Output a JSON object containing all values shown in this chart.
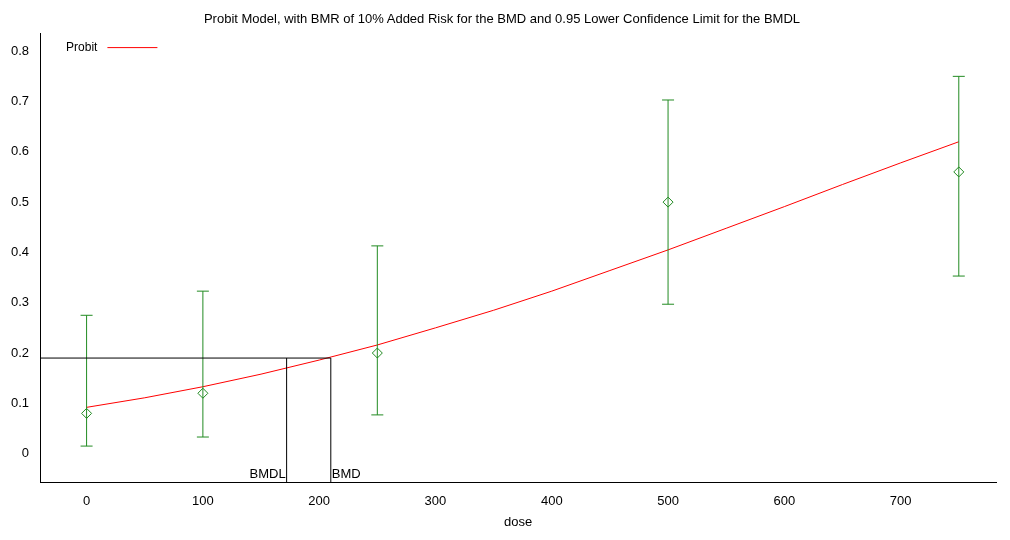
{
  "chart_data": {
    "type": "scatter",
    "title": "Probit Model, with BMR of 10% Added Risk for the BMD and 0.95 Lower Confidence Limit for the BMDL",
    "xlabel": "dose",
    "series": [
      {
        "type": "line",
        "name": "Probit",
        "color": "#ff0000",
        "marker": "none",
        "x": [
          0,
          50,
          100,
          150,
          200,
          250,
          300,
          350,
          400,
          450,
          500,
          550,
          600,
          650,
          700,
          750
        ],
        "values": [
          0.092,
          0.111,
          0.133,
          0.158,
          0.186,
          0.216,
          0.25,
          0.285,
          0.323,
          0.364,
          0.405,
          0.448,
          0.491,
          0.535,
          0.578,
          0.62
        ]
      },
      {
        "type": "scatter",
        "color": "#228b22",
        "marker": "diamond",
        "x": [
          0,
          100,
          250,
          500,
          750
        ],
        "values": [
          0.08,
          0.12,
          0.2,
          0.5,
          0.56
        ],
        "errors": [
          [
            0.015,
            0.275
          ],
          [
            0.033,
            0.323
          ],
          [
            0.077,
            0.413
          ],
          [
            0.297,
            0.703
          ],
          [
            0.353,
            0.75
          ]
        ]
      }
    ],
    "xlim": [
      -40,
      782
    ],
    "xticks": [
      0,
      100,
      200,
      300,
      400,
      500,
      600,
      700
    ],
    "ylim": [
      -0.058,
      0.835
    ],
    "yticks": [
      0,
      0.1,
      0.2,
      0.3,
      0.4,
      0.5,
      0.6,
      0.7,
      0.8
    ],
    "ref_lines": [
      {
        "axis": "y",
        "value": 0.19,
        "color": "#000000"
      },
      {
        "axis": "x",
        "value": 172,
        "label": "BMDL",
        "color": "#000000"
      },
      {
        "axis": "x",
        "value": 210,
        "label": "BMD",
        "color": "#000000"
      }
    ],
    "grid": false,
    "legend": "top left"
  }
}
